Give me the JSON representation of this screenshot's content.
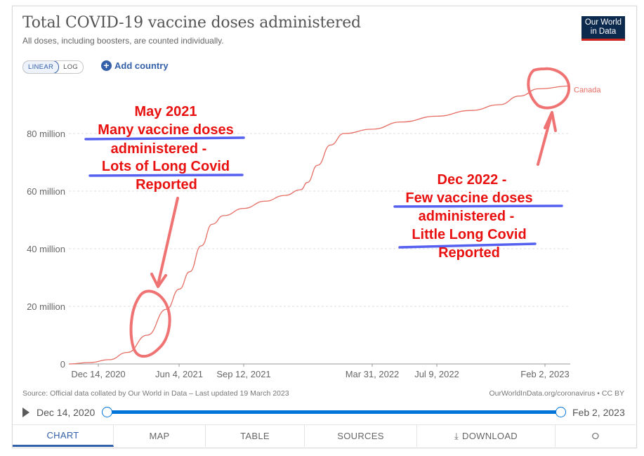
{
  "header": {
    "title": "Total COVID-19 vaccine doses administered",
    "subtitle": "All doses, including boosters, are counted individually.",
    "logo_line1": "Our World",
    "logo_line2": "in Data"
  },
  "controls": {
    "scale_linear": "LINEAR",
    "scale_log": "LOG",
    "add_country": "Add country"
  },
  "chart_data": {
    "type": "line",
    "title": "Total COVID-19 vaccine doses administered",
    "subtitle": "All doses, including boosters, are counted individually.",
    "x_ticks": [
      "Dec 14, 2020",
      "Jun 4, 2021",
      "Sep 12, 2021",
      "Mar 31, 2022",
      "Jul 9, 2022",
      "Feb 2, 2023"
    ],
    "y_ticks": [
      "0",
      "20 million",
      "40 million",
      "60 million",
      "80 million"
    ],
    "y_tick_values": [
      0,
      20000000,
      40000000,
      60000000,
      80000000
    ],
    "xlim": [
      "2020-12-14",
      "2023-02-02"
    ],
    "ylim": [
      0,
      100000000
    ],
    "grid": true,
    "series": [
      {
        "name": "Canada",
        "color": "#e66d64",
        "points": [
          [
            "2020-12-14",
            0
          ],
          [
            "2021-01-15",
            500000
          ],
          [
            "2021-02-15",
            1500000
          ],
          [
            "2021-03-15",
            4000000
          ],
          [
            "2021-04-15",
            10000000
          ],
          [
            "2021-05-15",
            19000000
          ],
          [
            "2021-06-04",
            26000000
          ],
          [
            "2021-06-20",
            32000000
          ],
          [
            "2021-07-08",
            41000000
          ],
          [
            "2021-07-25",
            48500000
          ],
          [
            "2021-08-12",
            51500000
          ],
          [
            "2021-09-12",
            54000000
          ],
          [
            "2021-10-15",
            56500000
          ],
          [
            "2021-11-15",
            58500000
          ],
          [
            "2021-12-10",
            60500000
          ],
          [
            "2021-12-20",
            63000000
          ],
          [
            "2022-01-05",
            69000000
          ],
          [
            "2022-01-25",
            76000000
          ],
          [
            "2022-02-15",
            80000000
          ],
          [
            "2022-03-31",
            81500000
          ],
          [
            "2022-05-15",
            84000000
          ],
          [
            "2022-07-09",
            86000000
          ],
          [
            "2022-09-01",
            88000000
          ],
          [
            "2022-10-15",
            90000000
          ],
          [
            "2022-11-15",
            93000000
          ],
          [
            "2022-12-15",
            95500000
          ],
          [
            "2023-02-02",
            96500000
          ]
        ]
      }
    ]
  },
  "annotations": {
    "left_lines": [
      "May 2021",
      "Many vaccine doses",
      "administered -",
      "Lots of Long Covid",
      "Reported"
    ],
    "right_lines": [
      "Dec 2022 -",
      "Few vaccine doses",
      "administered -",
      "Little Long Covid",
      "Reported"
    ],
    "text_color": "#e8110f",
    "underline_color": "#5560f0",
    "ink_color": "#f07373"
  },
  "footer": {
    "source": "Source: Official data collated by Our World in Data – Last updated 19 March 2023",
    "credit": "OurWorldInData.org/coronavirus • CC BY"
  },
  "timeline": {
    "start": "Dec 14, 2020",
    "end": "Feb 2, 2023"
  },
  "tabs": [
    "CHART",
    "MAP",
    "TABLE",
    "SOURCES",
    "DOWNLOAD",
    ""
  ]
}
